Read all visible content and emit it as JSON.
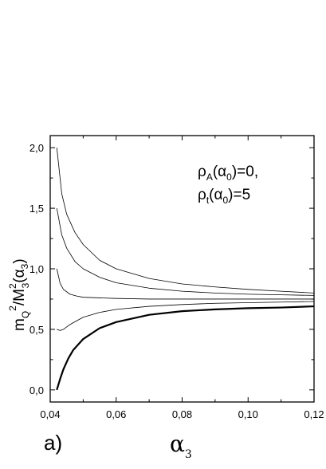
{
  "chart_data": {
    "type": "line",
    "panel_label": "a)",
    "xlabel": {
      "main": "α",
      "sub": "3"
    },
    "ylabel": {
      "m": "m",
      "m_sub": "Q",
      "m_sup": "2",
      "slash": "/M",
      "M_sup": "2",
      "M_sub": "3",
      "paren_open": "(",
      "alpha": "α",
      "alpha_sub": "3",
      "paren_close": ")"
    },
    "annotation": {
      "line1": {
        "rho": "ρ",
        "rho_sub": "A",
        "open": "(",
        "alpha": "α",
        "alpha_sub": "0",
        "rest": ")=0,"
      },
      "line2": {
        "rho": "ρ",
        "rho_sub": "t",
        "open": "(",
        "alpha": "α",
        "alpha_sub": "0",
        "rest": ")=5"
      }
    },
    "xlim": [
      0.04,
      0.12
    ],
    "ylim": [
      -0.1,
      2.1
    ],
    "xticks": [
      {
        "value": 0.04,
        "label": "0,04"
      },
      {
        "value": 0.06,
        "label": "0,06"
      },
      {
        "value": 0.08,
        "label": "0,08"
      },
      {
        "value": 0.1,
        "label": "0,10"
      },
      {
        "value": 0.12,
        "label": "0,12"
      }
    ],
    "yticks": [
      {
        "value": 0.0,
        "label": "0,0"
      },
      {
        "value": 0.5,
        "label": "0,5"
      },
      {
        "value": 1.0,
        "label": "1,0"
      },
      {
        "value": 1.5,
        "label": "1,5"
      },
      {
        "value": 2.0,
        "label": "2,0"
      }
    ],
    "grid": false,
    "series": [
      {
        "color": "#000000",
        "width": 0.8,
        "x": [
          0.042,
          0.0435,
          0.045,
          0.0475,
          0.05,
          0.055,
          0.06,
          0.07,
          0.08,
          0.09,
          0.1,
          0.11,
          0.12
        ],
        "y": [
          2.0,
          1.62,
          1.45,
          1.3,
          1.2,
          1.07,
          1.0,
          0.92,
          0.875,
          0.85,
          0.83,
          0.815,
          0.8
        ]
      },
      {
        "color": "#000000",
        "width": 0.8,
        "x": [
          0.042,
          0.0435,
          0.045,
          0.0475,
          0.05,
          0.055,
          0.06,
          0.07,
          0.08,
          0.09,
          0.1,
          0.11,
          0.12
        ],
        "y": [
          1.5,
          1.28,
          1.17,
          1.06,
          1.0,
          0.93,
          0.885,
          0.84,
          0.815,
          0.8,
          0.79,
          0.785,
          0.78
        ]
      },
      {
        "color": "#000000",
        "width": 0.8,
        "x": [
          0.042,
          0.043,
          0.044,
          0.046,
          0.048,
          0.05,
          0.055,
          0.06,
          0.07,
          0.08,
          0.09,
          0.1,
          0.11,
          0.12
        ],
        "y": [
          1.0,
          0.88,
          0.83,
          0.79,
          0.775,
          0.765,
          0.76,
          0.755,
          0.75,
          0.75,
          0.75,
          0.75,
          0.75,
          0.75
        ]
      },
      {
        "color": "#000000",
        "width": 0.8,
        "x": [
          0.042,
          0.043,
          0.044,
          0.046,
          0.048,
          0.05,
          0.055,
          0.06,
          0.07,
          0.08,
          0.09,
          0.1,
          0.11,
          0.12
        ],
        "y": [
          0.5,
          0.49,
          0.5,
          0.54,
          0.57,
          0.6,
          0.64,
          0.665,
          0.69,
          0.705,
          0.715,
          0.72,
          0.725,
          0.73
        ]
      },
      {
        "color": "#000000",
        "width": 2.2,
        "x": [
          0.042,
          0.043,
          0.044,
          0.0455,
          0.047,
          0.05,
          0.055,
          0.06,
          0.07,
          0.08,
          0.09,
          0.1,
          0.11,
          0.12
        ],
        "y": [
          0.0,
          0.09,
          0.17,
          0.26,
          0.33,
          0.42,
          0.51,
          0.56,
          0.62,
          0.65,
          0.665,
          0.675,
          0.68,
          0.69
        ]
      }
    ]
  }
}
